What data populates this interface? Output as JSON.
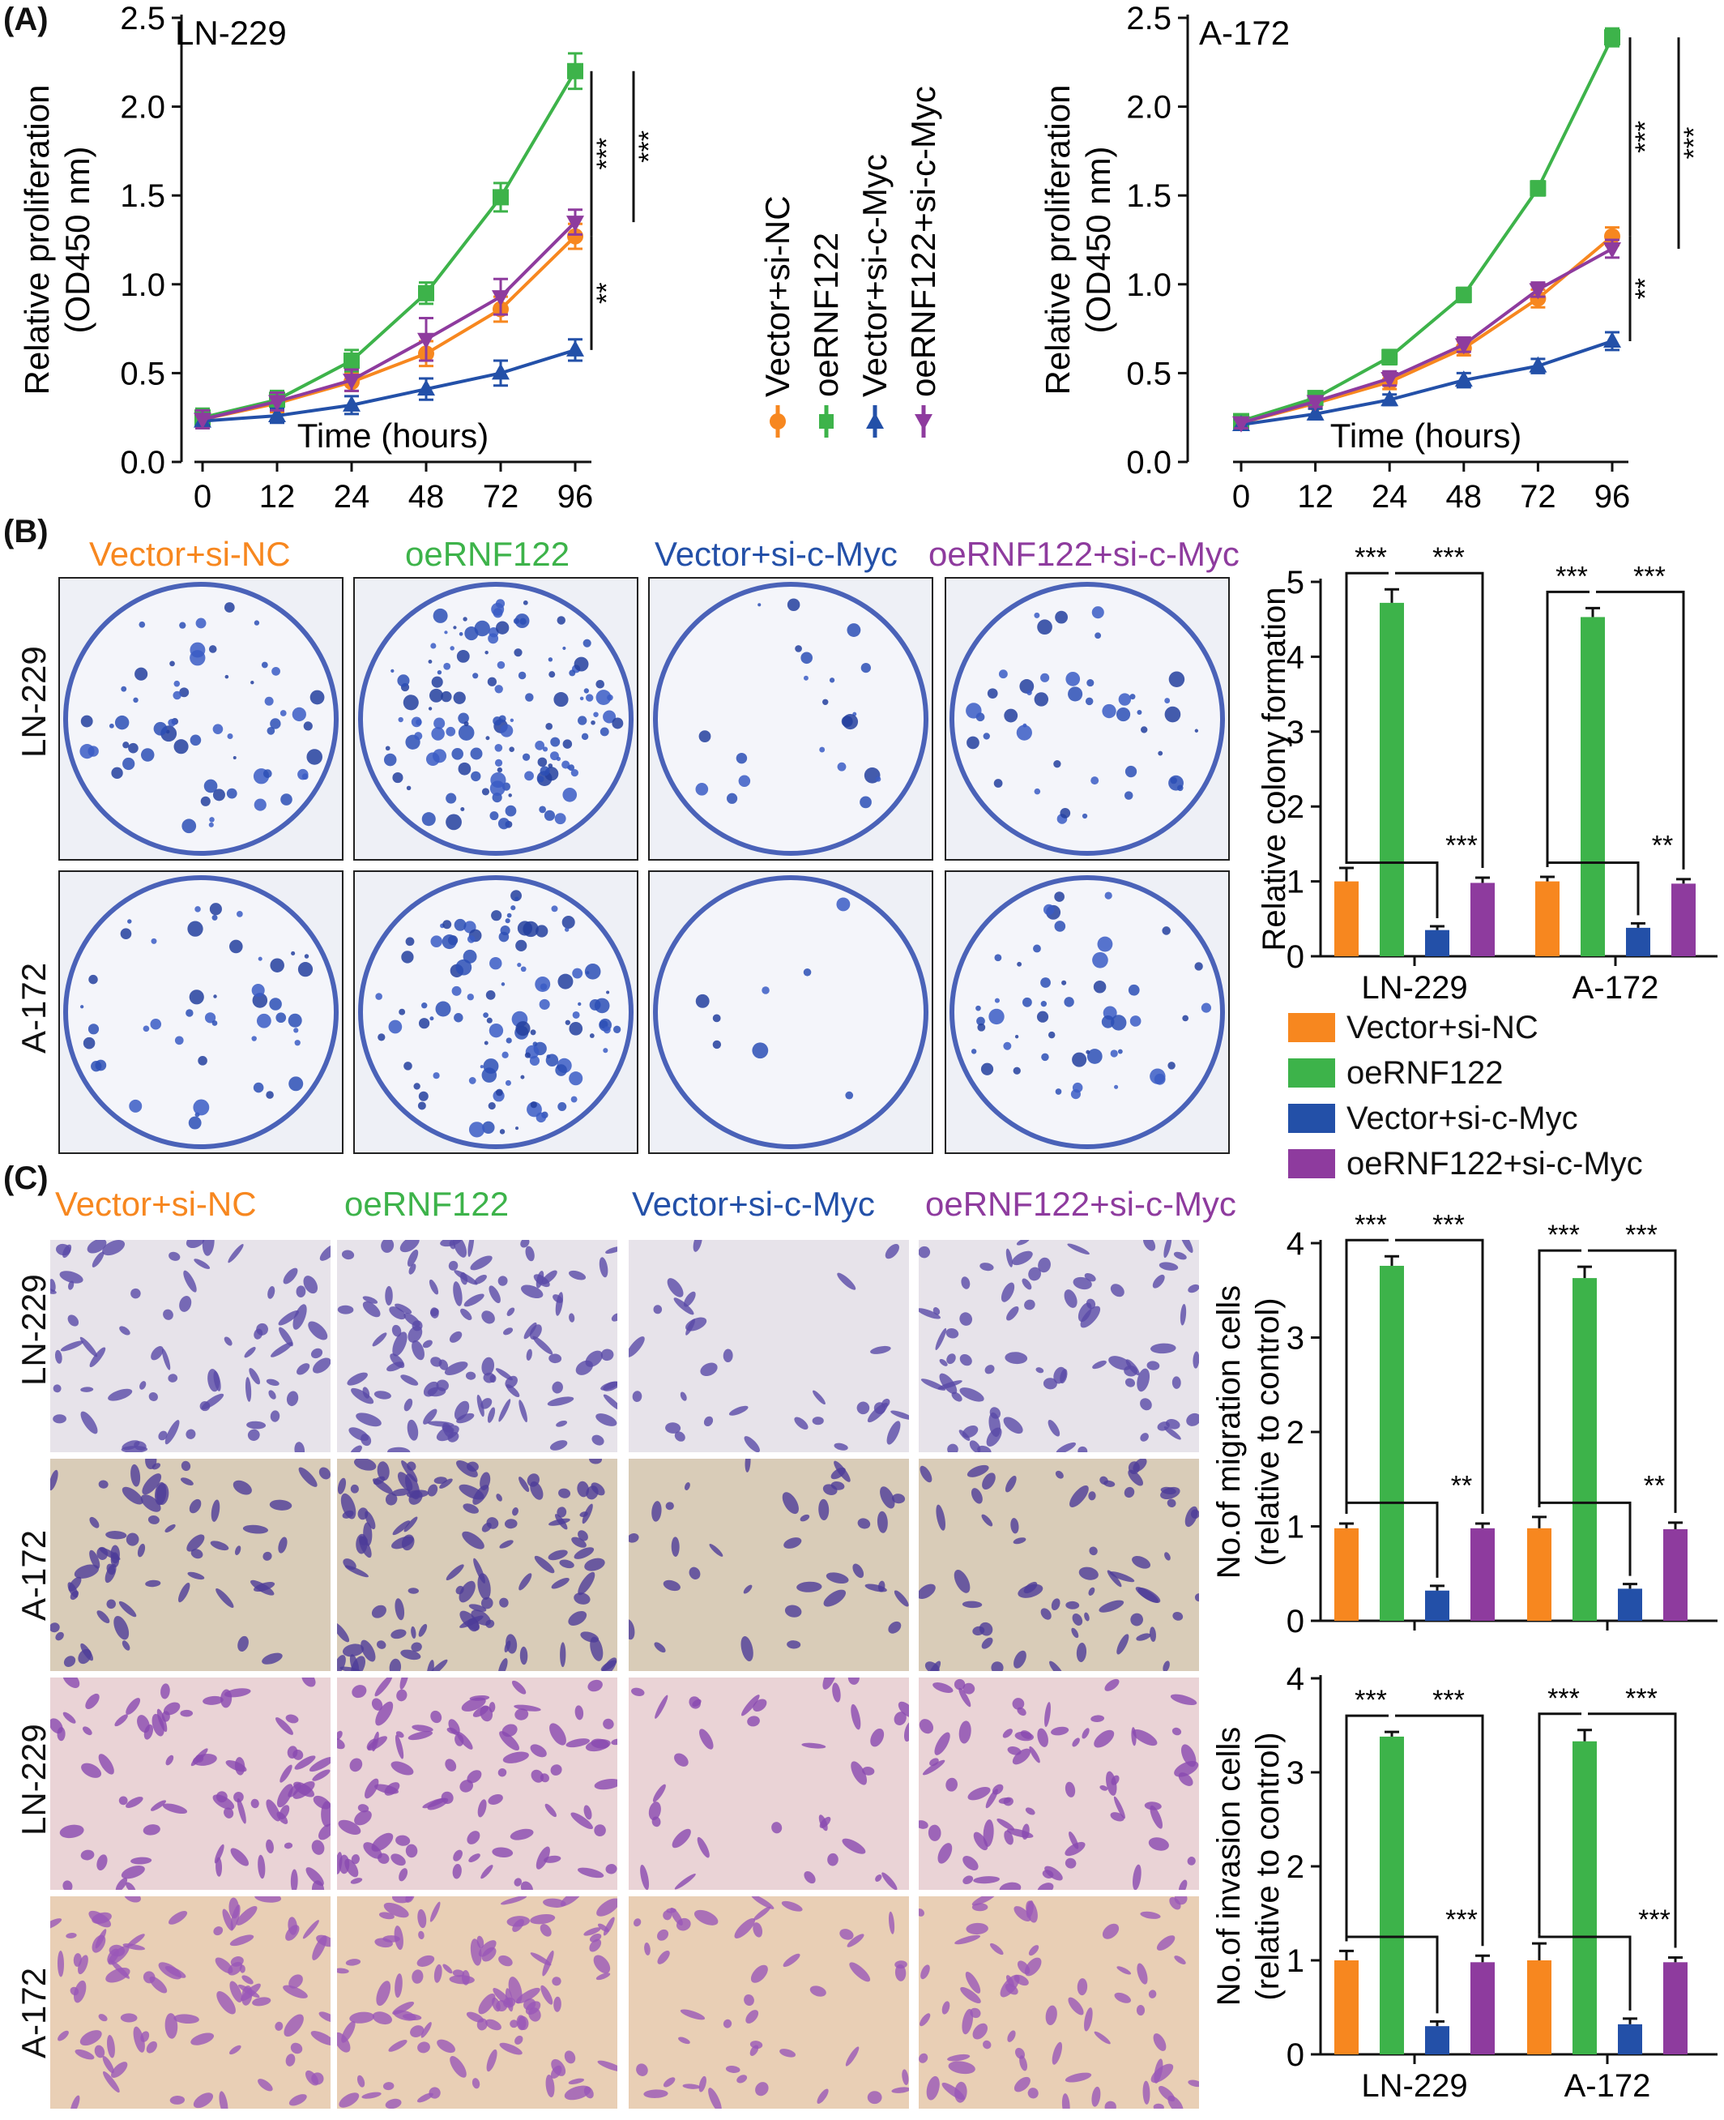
{
  "panel_labels": [
    "(A)",
    "(B)",
    "(C)"
  ],
  "colors": {
    "orange": "#F7871F",
    "green": "#3DB34A",
    "blue": "#2350A8",
    "purple": "#8E3B9E"
  },
  "conditions": [
    "Vector+si-NC",
    "oeRNF122",
    "Vector+si-c-Myc",
    "oeRNF122+si-c-Myc"
  ],
  "cell_lines": [
    "LN-229",
    "A-172"
  ],
  "panel_b": {
    "image_titles": [
      "Vector+si-NC",
      "oeRNF122",
      "Vector+si-c-Myc",
      "oeRNF122+si-c-Myc"
    ],
    "row_labels": [
      "LN-229",
      "A-172"
    ]
  },
  "panel_c": {
    "image_titles": [
      "Vector+si-NC",
      "oeRNF122",
      "Vector+si-c-Myc",
      "oeRNF122+si-c-Myc"
    ],
    "row_labels": [
      "LN-229",
      "A-172",
      "LN-229",
      "A-172"
    ]
  },
  "legend_b": [
    "Vector+si-NC",
    "oeRNF122",
    "Vector+si-c-Myc",
    "oeRNF122+si-c-Myc"
  ],
  "chart_data": [
    {
      "id": "A-left",
      "type": "line",
      "title": "LN-229",
      "xlabel": "Time (hours)",
      "ylabel": [
        "Relative proliferation",
        "(OD450 nm)"
      ],
      "categories": [
        "0",
        "12",
        "24",
        "48",
        "72",
        "96"
      ],
      "yticks": [
        "0.0",
        "0.5",
        "1.0",
        "1.5",
        "2.0",
        "2.5"
      ],
      "ylim": [
        0,
        2.5
      ],
      "series": [
        {
          "name": "Vector+si-NC",
          "color": "#F7871F",
          "marker": "circle",
          "values": [
            0.24,
            0.33,
            0.45,
            0.61,
            0.86,
            1.27
          ],
          "err": [
            0.05,
            0.05,
            0.05,
            0.07,
            0.07,
            0.07
          ]
        },
        {
          "name": "oeRNF122",
          "color": "#3DB34A",
          "marker": "square",
          "values": [
            0.25,
            0.35,
            0.57,
            0.95,
            1.49,
            2.2
          ],
          "err": [
            0.05,
            0.05,
            0.06,
            0.06,
            0.08,
            0.1
          ]
        },
        {
          "name": "Vector+si-c-Myc",
          "color": "#2350A8",
          "marker": "triangle-up",
          "values": [
            0.23,
            0.26,
            0.32,
            0.41,
            0.5,
            0.63
          ],
          "err": [
            0.04,
            0.04,
            0.05,
            0.06,
            0.07,
            0.06
          ]
        },
        {
          "name": "oeRNF122+si-c-Myc",
          "color": "#8E3B9E",
          "marker": "triangle-down",
          "values": [
            0.24,
            0.34,
            0.46,
            0.69,
            0.93,
            1.35
          ],
          "err": [
            0.05,
            0.05,
            0.06,
            0.12,
            0.1,
            0.07
          ]
        }
      ],
      "significance": [
        {
          "label": "***",
          "from": 2.2,
          "to": 1.27
        },
        {
          "label": "***",
          "from": 2.2,
          "to": 1.35
        },
        {
          "label": "**",
          "from": 1.27,
          "to": 0.63
        }
      ]
    },
    {
      "id": "A-right",
      "type": "line",
      "title": "A-172",
      "xlabel": "Time (hours)",
      "ylabel": [
        "Relative proliferation",
        "(OD450 nm)"
      ],
      "categories": [
        "0",
        "12",
        "24",
        "48",
        "72",
        "96"
      ],
      "yticks": [
        "0.0",
        "0.5",
        "1.0",
        "1.5",
        "2.0",
        "2.5"
      ],
      "ylim": [
        0,
        2.5
      ],
      "series": [
        {
          "name": "Vector+si-NC",
          "color": "#F7871F",
          "marker": "circle",
          "values": [
            0.22,
            0.33,
            0.45,
            0.64,
            0.92,
            1.27
          ],
          "err": [
            0.03,
            0.03,
            0.04,
            0.04,
            0.05,
            0.05
          ]
        },
        {
          "name": "oeRNF122",
          "color": "#3DB34A",
          "marker": "square",
          "values": [
            0.23,
            0.36,
            0.59,
            0.94,
            1.54,
            2.39
          ],
          "err": [
            0.03,
            0.03,
            0.04,
            0.04,
            0.04,
            0.05
          ]
        },
        {
          "name": "Vector+si-c-Myc",
          "color": "#2350A8",
          "marker": "triangle-up",
          "values": [
            0.21,
            0.27,
            0.35,
            0.46,
            0.54,
            0.68
          ],
          "err": [
            0.03,
            0.03,
            0.03,
            0.04,
            0.04,
            0.05
          ]
        },
        {
          "name": "oeRNF122+si-c-Myc",
          "color": "#8E3B9E",
          "marker": "triangle-down",
          "values": [
            0.22,
            0.34,
            0.47,
            0.66,
            0.97,
            1.2
          ],
          "err": [
            0.03,
            0.03,
            0.04,
            0.04,
            0.04,
            0.05
          ]
        }
      ],
      "significance": [
        {
          "label": "***",
          "from": 2.39,
          "to": 1.27
        },
        {
          "label": "***",
          "from": 2.39,
          "to": 1.2
        },
        {
          "label": "**",
          "from": 1.27,
          "to": 0.68
        }
      ]
    },
    {
      "id": "B-bar",
      "type": "bar",
      "ylabel": [
        "Relative colony formation"
      ],
      "groups": [
        "LN-229",
        "A-172"
      ],
      "yticks": [
        "0",
        "1",
        "2",
        "3",
        "4",
        "5"
      ],
      "ylim": [
        0,
        5
      ],
      "series": [
        {
          "name": "Vector+si-NC",
          "color": "#F7871F",
          "values": [
            1.0,
            1.0
          ],
          "err": [
            0.18,
            0.06
          ]
        },
        {
          "name": "oeRNF122",
          "color": "#3DB34A",
          "values": [
            4.72,
            4.53
          ],
          "err": [
            0.18,
            0.12
          ]
        },
        {
          "name": "Vector+si-c-Myc",
          "color": "#2350A8",
          "values": [
            0.35,
            0.38
          ],
          "err": [
            0.05,
            0.06
          ]
        },
        {
          "name": "oeRNF122+si-c-Myc",
          "color": "#8E3B9E",
          "values": [
            0.98,
            0.97
          ],
          "err": [
            0.07,
            0.06
          ]
        }
      ],
      "significance": [
        [
          "***",
          "***",
          "***"
        ],
        [
          "***",
          "***",
          "**"
        ]
      ]
    },
    {
      "id": "C-migration",
      "type": "bar",
      "ylabel": [
        "No.of migration cells",
        "(relative to control)"
      ],
      "groups": [
        "LN-229",
        "A-172"
      ],
      "yticks": [
        "0",
        "1",
        "2",
        "3",
        "4"
      ],
      "ylim": [
        0,
        4
      ],
      "series": [
        {
          "name": "Vector+si-NC",
          "color": "#F7871F",
          "values": [
            0.98,
            0.98
          ],
          "err": [
            0.05,
            0.12
          ]
        },
        {
          "name": "oeRNF122",
          "color": "#3DB34A",
          "values": [
            3.76,
            3.63
          ],
          "err": [
            0.1,
            0.12
          ]
        },
        {
          "name": "Vector+si-c-Myc",
          "color": "#2350A8",
          "values": [
            0.32,
            0.34
          ],
          "err": [
            0.05,
            0.05
          ]
        },
        {
          "name": "oeRNF122+si-c-Myc",
          "color": "#8E3B9E",
          "values": [
            0.98,
            0.97
          ],
          "err": [
            0.05,
            0.07
          ]
        }
      ],
      "significance": [
        [
          "***",
          "***",
          "**"
        ],
        [
          "***",
          "***",
          "**"
        ]
      ]
    },
    {
      "id": "C-invasion",
      "type": "bar",
      "ylabel": [
        "No.of invasion cells",
        "(relative to control)"
      ],
      "groups": [
        "LN-229",
        "A-172"
      ],
      "yticks": [
        "0",
        "1",
        "2",
        "3",
        "4"
      ],
      "ylim": [
        0,
        4
      ],
      "series": [
        {
          "name": "Vector+si-NC",
          "color": "#F7871F",
          "values": [
            1.0,
            1.0
          ],
          "err": [
            0.1,
            0.18
          ]
        },
        {
          "name": "oeRNF122",
          "color": "#3DB34A",
          "values": [
            3.38,
            3.33
          ],
          "err": [
            0.05,
            0.12
          ]
        },
        {
          "name": "Vector+si-c-Myc",
          "color": "#2350A8",
          "values": [
            0.3,
            0.32
          ],
          "err": [
            0.05,
            0.06
          ]
        },
        {
          "name": "oeRNF122+si-c-Myc",
          "color": "#8E3B9E",
          "values": [
            0.98,
            0.98
          ],
          "err": [
            0.07,
            0.05
          ]
        }
      ],
      "significance": [
        [
          "***",
          "***",
          "***"
        ],
        [
          "***",
          "***",
          "***"
        ]
      ]
    }
  ]
}
